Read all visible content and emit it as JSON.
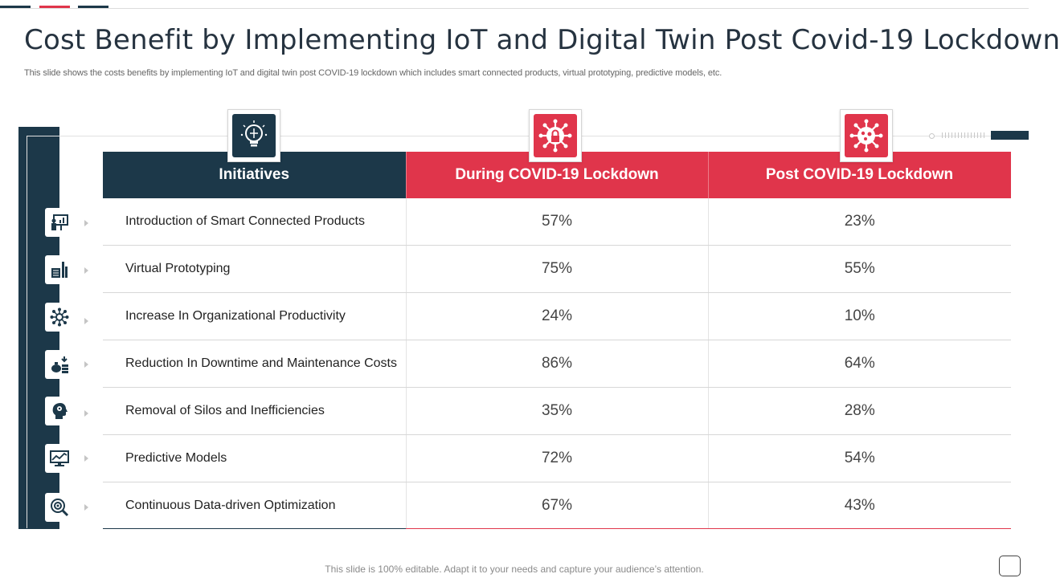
{
  "slide": {
    "title": "Cost Benefit by Implementing IoT and Digital Twin Post Covid-19 Lockdown",
    "subtitle": "This slide shows the costs benefits by implementing IoT and digital twin post COVID-19 lockdown which includes smart connected products, virtual prototyping, predictive models, etc.",
    "footer": "This slide is 100% editable. Adapt it to your needs and capture your audience’s attention."
  },
  "colors": {
    "navy": "#1c3849",
    "red": "#e0354b",
    "title": "#263340"
  },
  "header_icons": [
    "lightbulb-icon",
    "virus-lock-icon",
    "virus-icon"
  ],
  "table": {
    "headers": [
      "Initiatives",
      "During COVID-19 Lockdown",
      "Post COVID-19 Lockdown"
    ],
    "rows": [
      {
        "icon": "presentation-icon",
        "initiative": "Introduction  of Smart Connected Products",
        "during": "57%",
        "post": "23%"
      },
      {
        "icon": "prototype-icon",
        "initiative": "Virtual Prototyping",
        "during": "75%",
        "post": "55%"
      },
      {
        "icon": "network-icon",
        "initiative": "Increase In Organizational  Productivity",
        "during": "24%",
        "post": "10%"
      },
      {
        "icon": "money-coins-icon",
        "initiative": "Reduction In Downtime and Maintenance  Costs",
        "during": "86%",
        "post": "64%"
      },
      {
        "icon": "head-gear-icon",
        "initiative": "Removal of Silos and Inefficiencies",
        "during": "35%",
        "post": "28%"
      },
      {
        "icon": "chart-monitor-icon",
        "initiative": "Predictive Models",
        "during": "72%",
        "post": "54%"
      },
      {
        "icon": "target-search-icon",
        "initiative": "Continuous  Data-driven Optimization",
        "during": "67%",
        "post": "43%"
      }
    ]
  }
}
